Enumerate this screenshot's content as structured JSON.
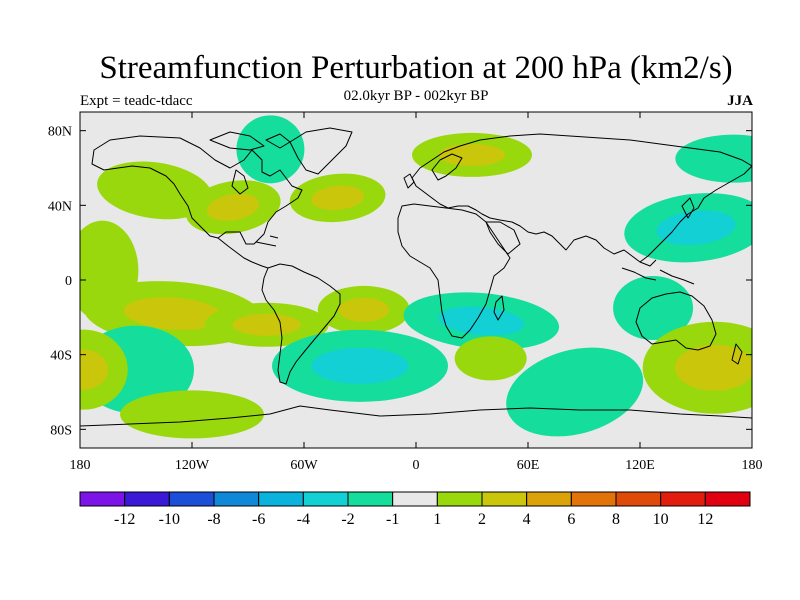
{
  "title": "Streamfunction Perturbation at 200 hPa (km2/s)",
  "experiment_label": "Expt = teadc-tdacc",
  "period_label": "02.0kyr BP - 002kyr BP",
  "season_label": "JJA",
  "map": {
    "projection": "cylindrical equidistant",
    "lon_range": [
      -180,
      180
    ],
    "lat_range": [
      -90,
      90
    ],
    "land_color": "#e8e8e8",
    "coast_color": "#000000",
    "x_ticks": [
      {
        "lon": -180,
        "label": "180"
      },
      {
        "lon": -120,
        "label": "120W"
      },
      {
        "lon": -60,
        "label": "60W"
      },
      {
        "lon": 0,
        "label": "0"
      },
      {
        "lon": 60,
        "label": "60E"
      },
      {
        "lon": 120,
        "label": "120E"
      },
      {
        "lon": 180,
        "label": "180"
      }
    ],
    "y_ticks": [
      {
        "lat": 80,
        "label": "80N"
      },
      {
        "lat": 40,
        "label": "40N"
      },
      {
        "lat": 0,
        "label": "0"
      },
      {
        "lat": -40,
        "label": "40S"
      },
      {
        "lat": -80,
        "label": "80S"
      }
    ]
  },
  "chart_data": {
    "type": "heatmap",
    "title": "Streamfunction Perturbation at 200 hPa (km2/s)",
    "subtitle": "02.0kyr BP - 002kyr BP",
    "season": "JJA",
    "units": "km2/s",
    "levels": [
      -12,
      -10,
      -8,
      -6,
      -4,
      -2,
      -1,
      1,
      2,
      4,
      6,
      8,
      10,
      12
    ],
    "level_labels": [
      "-12",
      "-10",
      "-8",
      "-6",
      "-4",
      "-2",
      "-1",
      "1",
      "2",
      "4",
      "6",
      "8",
      "10",
      "12"
    ],
    "colors": [
      "#7c14e8",
      "#3a1ad6",
      "#1c4ed8",
      "#0f88d8",
      "#0ab2dc",
      "#13d0d4",
      "#15dd9c",
      "#e8e8e8",
      "#9ad80e",
      "#cac60c",
      "#dca20a",
      "#e27308",
      "#e04a08",
      "#e21d0d",
      "#e0000f"
    ],
    "features": [
      {
        "lon": -140,
        "lat": 48,
        "value": 1.5
      },
      {
        "lon": -98,
        "lat": 39,
        "value": 2.5
      },
      {
        "lon": -78,
        "lat": 70,
        "value": -1.5
      },
      {
        "lon": -42,
        "lat": 44,
        "value": 2.5
      },
      {
        "lon": 30,
        "lat": 67,
        "value": 2.5
      },
      {
        "lon": 150,
        "lat": 28,
        "value": -2.5
      },
      {
        "lon": 170,
        "lat": 65,
        "value": -1.5
      },
      {
        "lon": -168,
        "lat": 5,
        "value": 1.5
      },
      {
        "lon": -130,
        "lat": -18,
        "value": 2.5
      },
      {
        "lon": -80,
        "lat": -24,
        "value": 2.5
      },
      {
        "lon": -28,
        "lat": -16,
        "value": 2.5
      },
      {
        "lon": 35,
        "lat": -22,
        "value": -2.5
      },
      {
        "lon": 127,
        "lat": -15,
        "value": -1.5
      },
      {
        "lon": -30,
        "lat": -46,
        "value": -2.5
      },
      {
        "lon": 40,
        "lat": -42,
        "value": 1.5
      },
      {
        "lon": -150,
        "lat": -48,
        "value": -1.5
      },
      {
        "lon": 160,
        "lat": -47,
        "value": 2.5
      },
      {
        "lon": 85,
        "lat": -60,
        "value": -1.5
      },
      {
        "lon": -120,
        "lat": -72,
        "value": 1.5
      },
      {
        "lon": -178,
        "lat": -48,
        "value": 2.5
      }
    ]
  }
}
